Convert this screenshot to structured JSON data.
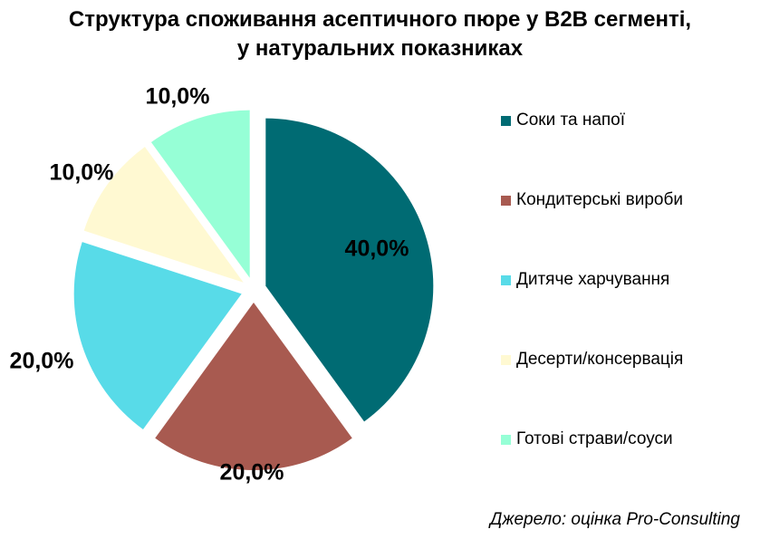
{
  "chart_data": {
    "type": "pie",
    "title_line1": "Структура споживання асептичного пюре у B2B сегменті,",
    "title_line2": "у натуральних показниках",
    "slices": [
      {
        "label": "Соки та напої",
        "value": 40.0,
        "display": "40,0%",
        "color": "#006B73"
      },
      {
        "label": "Кондитерські вироби",
        "value": 20.0,
        "display": "20,0%",
        "color": "#A85A50"
      },
      {
        "label": "Дитяче харчування",
        "value": 20.0,
        "display": "20,0%",
        "color": "#58DBE8"
      },
      {
        "label": "Десерти/консервація",
        "value": 10.0,
        "display": "10,0%",
        "color": "#FFF9D2"
      },
      {
        "label": "Готові страви/соуси",
        "value": 10.0,
        "display": "10,0%",
        "color": "#96FFD6"
      }
    ],
    "legend_position": "right"
  },
  "source": "Джерело: оцінка Pro-Consulting"
}
